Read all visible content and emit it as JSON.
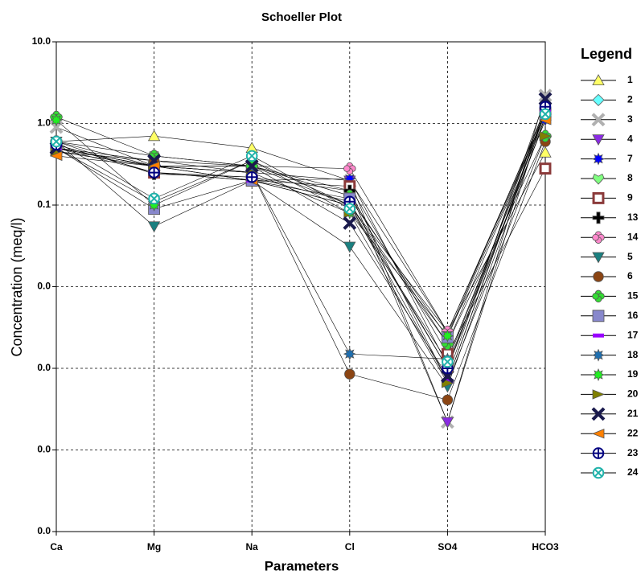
{
  "chart_data": {
    "type": "line",
    "title": "Schoeller Plot",
    "x_label": "Parameters",
    "y_label": "Concentration (meq/l)",
    "legend_title": "Legend",
    "legend_position": "right",
    "log_scale": true,
    "grid": true,
    "categories": [
      "Ca",
      "Mg",
      "Na",
      "Cl",
      "SO4",
      "HCO3"
    ],
    "ylim": [
      1e-05,
      10
    ],
    "yticks": [
      {
        "value": 10,
        "label": "10.0"
      },
      {
        "value": 1,
        "label": "1.0"
      },
      {
        "value": 0.1,
        "label": "0.1"
      },
      {
        "value": 0.01,
        "label": "0.0"
      },
      {
        "value": 0.001,
        "label": "0.0"
      },
      {
        "value": 0.0001,
        "label": "0.0"
      },
      {
        "value": 1e-05,
        "label": "0.0"
      }
    ],
    "series": [
      {
        "name": "1",
        "color": "#ffff66",
        "marker": "triangle",
        "values": [
          0.6,
          0.7,
          0.5,
          0.2,
          0.0028,
          0.44
        ]
      },
      {
        "name": "2",
        "color": "#66ffff",
        "marker": "diamond",
        "values": [
          0.5,
          0.11,
          0.35,
          0.1,
          0.002,
          1.3
        ]
      },
      {
        "name": "3",
        "color": "#b0b0b0",
        "marker": "cross",
        "values": [
          0.9,
          0.3,
          0.3,
          0.15,
          0.00022,
          2.2
        ]
      },
      {
        "name": "4",
        "color": "#8a2be2",
        "marker": "triangle-down",
        "values": [
          0.5,
          0.3,
          0.25,
          0.2,
          0.00022,
          1.5
        ]
      },
      {
        "name": "7",
        "color": "#0000ff",
        "marker": "star",
        "values": [
          0.55,
          0.25,
          0.2,
          0.21,
          0.0011,
          1.1
        ]
      },
      {
        "name": "8",
        "color": "#80ff80",
        "marker": "heart",
        "values": [
          0.6,
          0.4,
          0.3,
          0.1,
          0.0028,
          1.4
        ]
      },
      {
        "name": "9",
        "color": "#8b3a3a",
        "marker": "square-open",
        "values": [
          0.5,
          0.25,
          0.2,
          0.17,
          0.0015,
          0.28
        ]
      },
      {
        "name": "13",
        "color": "#000000",
        "marker": "plus",
        "values": [
          0.6,
          0.24,
          0.22,
          0.15,
          0.0007,
          1.5
        ]
      },
      {
        "name": "14",
        "color": "#ff88cc",
        "marker": "flower",
        "values": [
          0.6,
          0.3,
          0.3,
          0.28,
          0.0028,
          1.3
        ]
      },
      {
        "name": "5",
        "color": "#1a8080",
        "marker": "triangle-down",
        "values": [
          0.6,
          0.055,
          0.2,
          0.031,
          0.0006,
          1.2
        ]
      },
      {
        "name": "6",
        "color": "#8b4513",
        "marker": "circle",
        "values": [
          0.45,
          0.35,
          0.25,
          0.00085,
          0.00041,
          0.6
        ]
      },
      {
        "name": "15",
        "color": "#33dd33",
        "marker": "flower",
        "values": [
          1.2,
          0.4,
          0.3,
          0.13,
          0.002,
          0.7
        ]
      },
      {
        "name": "16",
        "color": "#8888cc",
        "marker": "square",
        "values": [
          0.5,
          0.09,
          0.2,
          0.12,
          0.0024,
          1.3
        ]
      },
      {
        "name": "17",
        "color": "#9900ff",
        "marker": "bar",
        "values": [
          0.5,
          0.3,
          0.2,
          0.1,
          0.0007,
          1.4
        ]
      },
      {
        "name": "18",
        "color": "#1e6fb0",
        "marker": "star",
        "values": [
          0.5,
          0.3,
          0.25,
          0.0015,
          0.0013,
          1.2
        ]
      },
      {
        "name": "19",
        "color": "#22ee22",
        "marker": "star",
        "values": [
          1.1,
          0.1,
          0.35,
          0.08,
          0.0025,
          1.5
        ]
      },
      {
        "name": "20",
        "color": "#808000",
        "marker": "triangle-right",
        "values": [
          0.45,
          0.3,
          0.25,
          0.08,
          0.00066,
          0.7
        ]
      },
      {
        "name": "21",
        "color": "#1a1a4d",
        "marker": "cross",
        "values": [
          0.5,
          0.35,
          0.3,
          0.06,
          0.0008,
          2.0
        ]
      },
      {
        "name": "22",
        "color": "#ff8000",
        "marker": "triangle-left",
        "values": [
          0.4,
          0.3,
          0.2,
          0.1,
          0.001,
          1.1
        ]
      },
      {
        "name": "23",
        "color": "#000080",
        "marker": "circle-plus",
        "values": [
          0.55,
          0.25,
          0.22,
          0.11,
          0.001,
          1.6
        ]
      },
      {
        "name": "24",
        "color": "#20b2aa",
        "marker": "circle-x",
        "values": [
          0.6,
          0.12,
          0.4,
          0.09,
          0.0012,
          1.3
        ]
      }
    ]
  }
}
